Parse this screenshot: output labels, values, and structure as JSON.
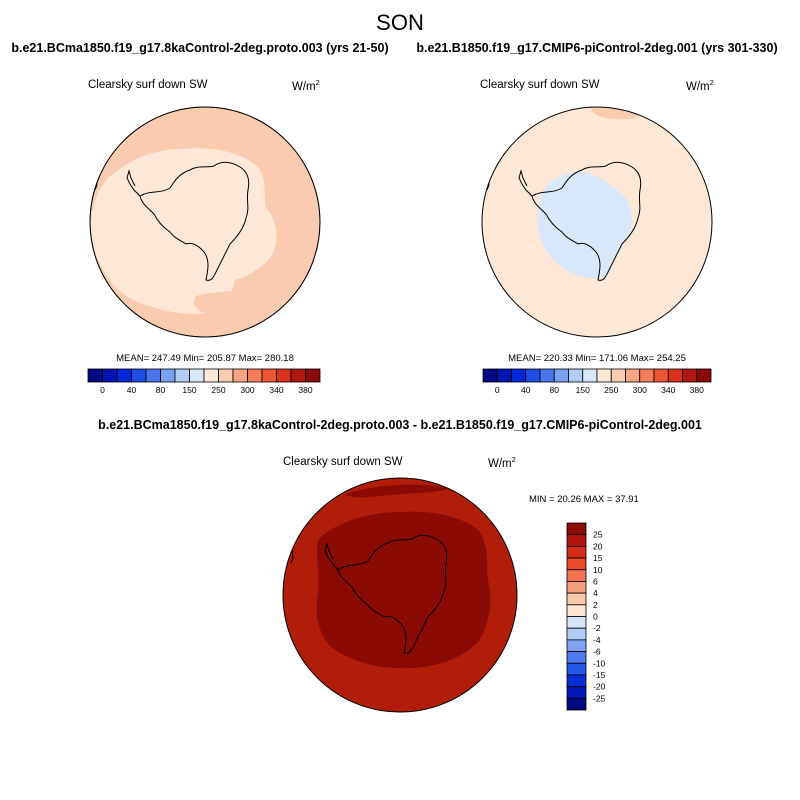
{
  "figure": {
    "season": "SON"
  },
  "colorbar_top": {
    "colors": [
      "#000a85",
      "#0015b3",
      "#0027d9",
      "#1f4de8",
      "#4a74ee",
      "#7aa0f2",
      "#b5cdf6",
      "#d8e8fa",
      "#fde8d8",
      "#fbcbb0",
      "#f7a582",
      "#f37d56",
      "#ed5530",
      "#d9311c",
      "#b01710",
      "#8a0a05"
    ],
    "labels": [
      "0",
      "40",
      "80",
      "150",
      "250",
      "300",
      "340",
      "380"
    ]
  },
  "colorbar_diff": {
    "colors": [
      "#00097f",
      "#0018b8",
      "#0730d9",
      "#2555e6",
      "#4f79ee",
      "#7fa3f3",
      "#b3cbf7",
      "#d6e6fa",
      "#fde6d6",
      "#fbc7ab",
      "#f69f7d",
      "#f27350",
      "#ea4a28",
      "#d62c17",
      "#b0160d",
      "#8a0a04"
    ],
    "labels": [
      "25",
      "20",
      "15",
      "10",
      "6",
      "4",
      "2",
      "0",
      "-2",
      "-4",
      "-6",
      "-10",
      "-15",
      "-20",
      "-25"
    ]
  },
  "chart_data": [
    {
      "type": "heatmap",
      "projection": "south polar stereographic",
      "title": "b.e21.BCma1850.f19_g17.8kaControl-2deg.proto.003 (yrs 21-50)",
      "variable": "Clearsky surf down SW",
      "units_base": "W/m",
      "units_exp": "2",
      "stats": {
        "text": "MEAN= 247.49  Min= 205.87  Max= 280.18",
        "mean": 247.49,
        "min": 205.87,
        "max": 280.18
      },
      "contour_levels": [
        0,
        40,
        80,
        150,
        250,
        300,
        340,
        380
      ],
      "field_colors": {
        "outer": "#fbcbb0",
        "inner": "#fde8d8"
      }
    },
    {
      "type": "heatmap",
      "projection": "south polar stereographic",
      "title": "b.e21.B1850.f19_g17.CMIP6-piControl-2deg.001 (yrs 301-330)",
      "variable": "Clearsky surf down SW",
      "units_base": "W/m",
      "units_exp": "2",
      "stats": {
        "text": "MEAN= 220.33  Min= 171.06  Max= 254.25",
        "mean": 220.33,
        "min": 171.06,
        "max": 254.25
      },
      "contour_levels": [
        0,
        40,
        80,
        150,
        250,
        300,
        340,
        380
      ],
      "field_colors": {
        "outer": "#fde8d8",
        "inner": "#d8e8fa",
        "patch": "#fbcbb0"
      }
    },
    {
      "type": "heatmap",
      "projection": "south polar stereographic",
      "title": "b.e21.BCma1850.f19_g17.8kaControl-2deg.proto.003 - b.e21.B1850.f19_g17.CMIP6-piControl-2deg.001",
      "variable": "Clearsky surf down SW",
      "units_base": "W/m",
      "units_exp": "2",
      "stats": {
        "text": "MIN =  20.26 MAX =  37.91",
        "min": 20.26,
        "max": 37.91
      },
      "contour_levels": [
        -25,
        -20,
        -15,
        -10,
        -6,
        -4,
        -2,
        0,
        2,
        4,
        6,
        10,
        15,
        20,
        25
      ],
      "field_colors": {
        "outer": "#b01e0a",
        "inner": "#8a0a04"
      }
    }
  ]
}
